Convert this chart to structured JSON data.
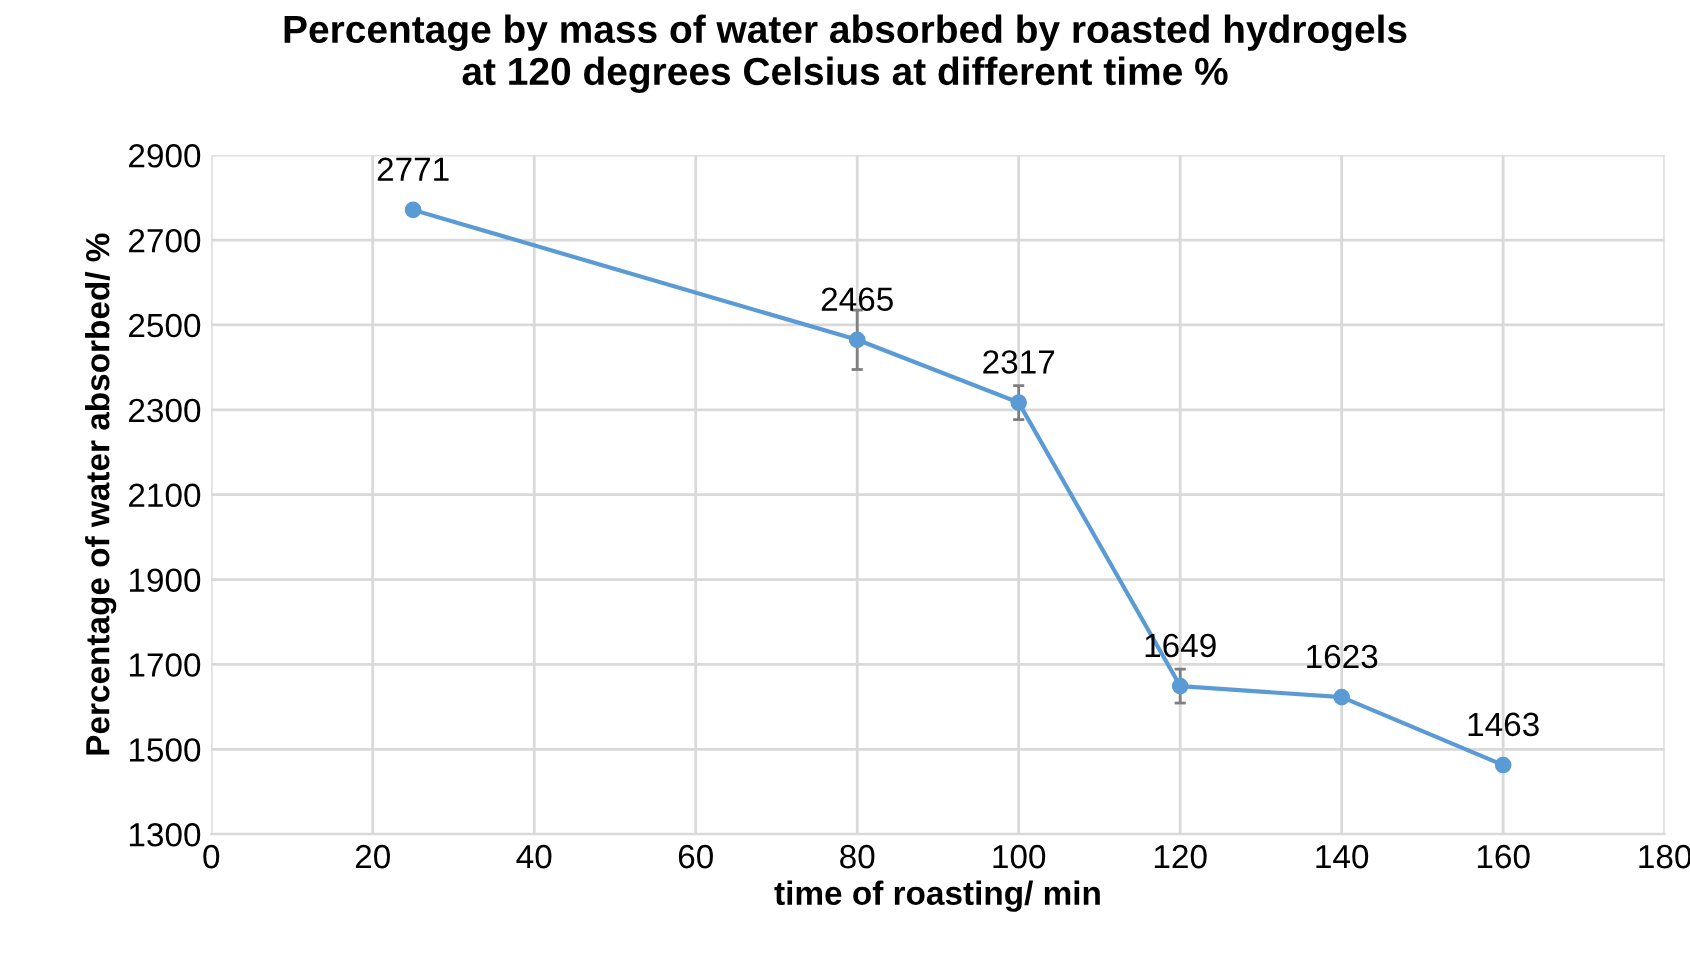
{
  "chart_data": {
    "type": "line",
    "title": "Percentage by mass of water absorbed by roasted hydrogels\nat 120 degrees Celsius at different time %",
    "xlabel": "time of roasting/ min",
    "ylabel": "Percentage of water absorbed/ %",
    "x": [
      25,
      80,
      100,
      120,
      140,
      160
    ],
    "series": [
      {
        "color": "#5b9bd5",
        "values": [
          2771,
          2465,
          2317,
          1649,
          1623,
          1463
        ],
        "errors": [
          null,
          70,
          40,
          40,
          null,
          null
        ]
      }
    ],
    "xlim": [
      0,
      180
    ],
    "xticks": [
      0,
      20,
      40,
      60,
      80,
      100,
      120,
      140,
      160,
      180
    ],
    "ylim": [
      1300,
      2900
    ],
    "yticks": [
      1300,
      1500,
      1700,
      1900,
      2100,
      2300,
      2500,
      2700,
      2900
    ],
    "grid": true,
    "marker": "circle",
    "line_style": "solid",
    "data_labels": true,
    "legend": false
  }
}
